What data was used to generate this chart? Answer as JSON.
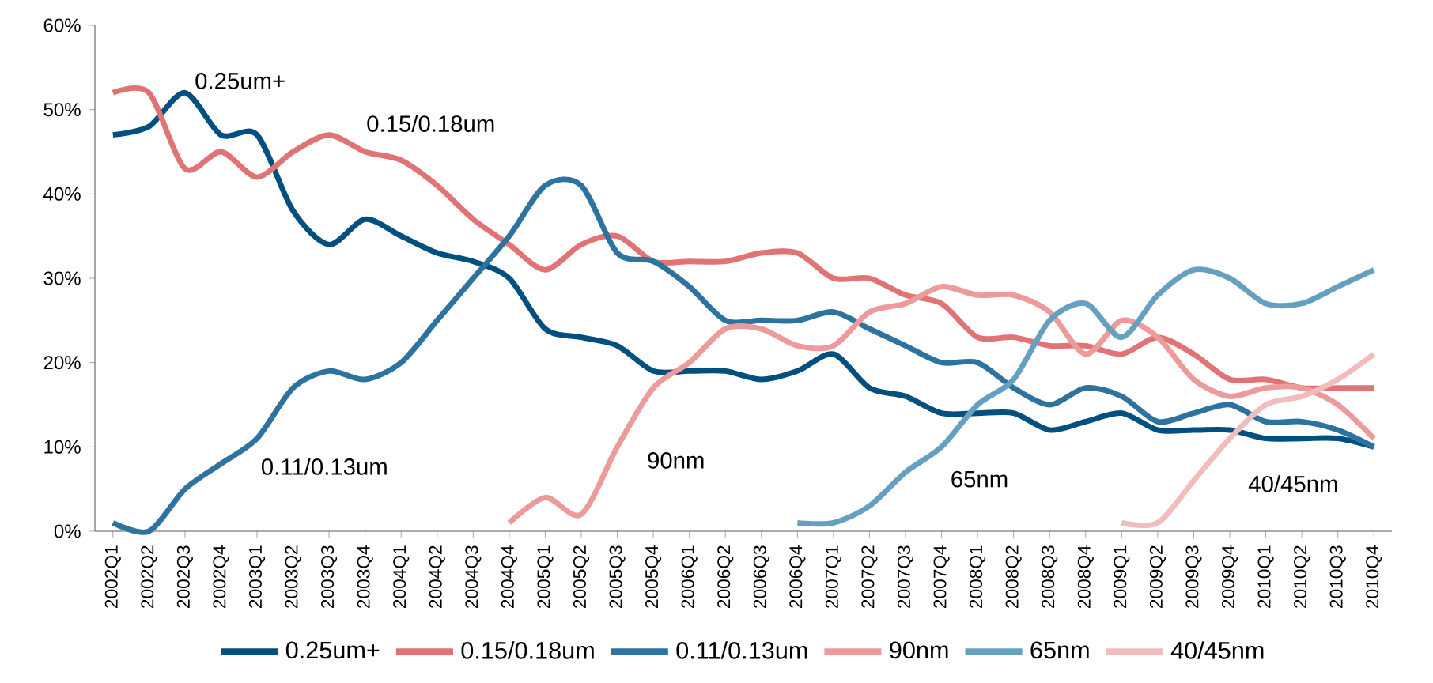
{
  "chart_data": {
    "type": "line",
    "categories": [
      "2002Q1",
      "2002Q2",
      "2002Q3",
      "2002Q4",
      "2003Q1",
      "2003Q2",
      "2003Q3",
      "2003Q4",
      "2004Q1",
      "2004Q2",
      "2004Q3",
      "2004Q4",
      "2005Q1",
      "2005Q2",
      "2005Q3",
      "2005Q4",
      "2006Q1",
      "2006Q2",
      "2006Q3",
      "2006Q4",
      "2007Q1",
      "2007Q2",
      "2007Q3",
      "2007Q4",
      "2008Q1",
      "2008Q2",
      "2008Q3",
      "2008Q4",
      "2009Q1",
      "2009Q2",
      "2009Q3",
      "2009Q4",
      "2010Q1",
      "2010Q2",
      "2010Q3",
      "2010Q4"
    ],
    "series": [
      {
        "name": "0.25um+",
        "color": "#00507f",
        "values": [
          47,
          48,
          52,
          47,
          47,
          38,
          34,
          37,
          35,
          33,
          32,
          30,
          24,
          23,
          22,
          19,
          19,
          19,
          18,
          19,
          21,
          17,
          16,
          14,
          14,
          14,
          12,
          13,
          14,
          12,
          12,
          12,
          11,
          11,
          11,
          10
        ]
      },
      {
        "name": "0.15/0.18um",
        "color": "#e07373",
        "values": [
          52,
          52,
          43,
          45,
          42,
          45,
          47,
          45,
          44,
          41,
          37,
          34,
          31,
          34,
          35,
          32,
          32,
          32,
          33,
          33,
          30,
          30,
          28,
          27,
          23,
          23,
          22,
          22,
          21,
          23,
          21,
          18,
          18,
          17,
          17,
          17
        ]
      },
      {
        "name": "0.11/0.13um",
        "color": "#2e73a0",
        "values": [
          1,
          0,
          5,
          8,
          11,
          17,
          19,
          18,
          20,
          25,
          30,
          35,
          41,
          41,
          33,
          32,
          29,
          25,
          25,
          25,
          26,
          24,
          22,
          20,
          20,
          17,
          15,
          17,
          16,
          13,
          14,
          15,
          13,
          13,
          12,
          10
        ]
      },
      {
        "name": "90nm",
        "color": "#ec9a9a",
        "values": [
          null,
          null,
          null,
          null,
          null,
          null,
          null,
          null,
          null,
          null,
          null,
          1,
          4,
          2,
          10,
          17,
          20,
          24,
          24,
          22,
          22,
          26,
          27,
          29,
          28,
          28,
          26,
          21,
          25,
          23,
          18,
          16,
          17,
          17,
          15,
          11
        ]
      },
      {
        "name": "65nm",
        "color": "#66a0c0",
        "values": [
          null,
          null,
          null,
          null,
          null,
          null,
          null,
          null,
          null,
          null,
          null,
          null,
          null,
          null,
          null,
          null,
          null,
          null,
          null,
          1,
          1,
          3,
          7,
          10,
          15,
          18,
          25,
          27,
          23,
          28,
          31,
          30,
          27,
          27,
          29,
          31
        ]
      },
      {
        "name": "40/45nm",
        "color": "#f2bcbc",
        "values": [
          null,
          null,
          null,
          null,
          null,
          null,
          null,
          null,
          null,
          null,
          null,
          null,
          null,
          null,
          null,
          null,
          null,
          null,
          null,
          null,
          null,
          null,
          null,
          null,
          null,
          null,
          null,
          null,
          1,
          1,
          6,
          11,
          15,
          16,
          18,
          21
        ]
      }
    ],
    "ylim": [
      0,
      60
    ],
    "yticks": [
      {
        "value": 0,
        "label": "0%"
      },
      {
        "value": 10,
        "label": "10%"
      },
      {
        "value": 20,
        "label": "20%"
      },
      {
        "value": 30,
        "label": "30%"
      },
      {
        "value": 40,
        "label": "40%"
      },
      {
        "value": 50,
        "label": "50%"
      },
      {
        "value": 60,
        "label": "60%"
      }
    ],
    "annotations": [
      "0.25um+",
      "0.15/0.18um",
      "0.11/0.13um",
      "90nm",
      "65nm",
      "40/45nm"
    ],
    "legend": "bottom",
    "grid": false,
    "marker": "none",
    "line_style": "solid"
  }
}
